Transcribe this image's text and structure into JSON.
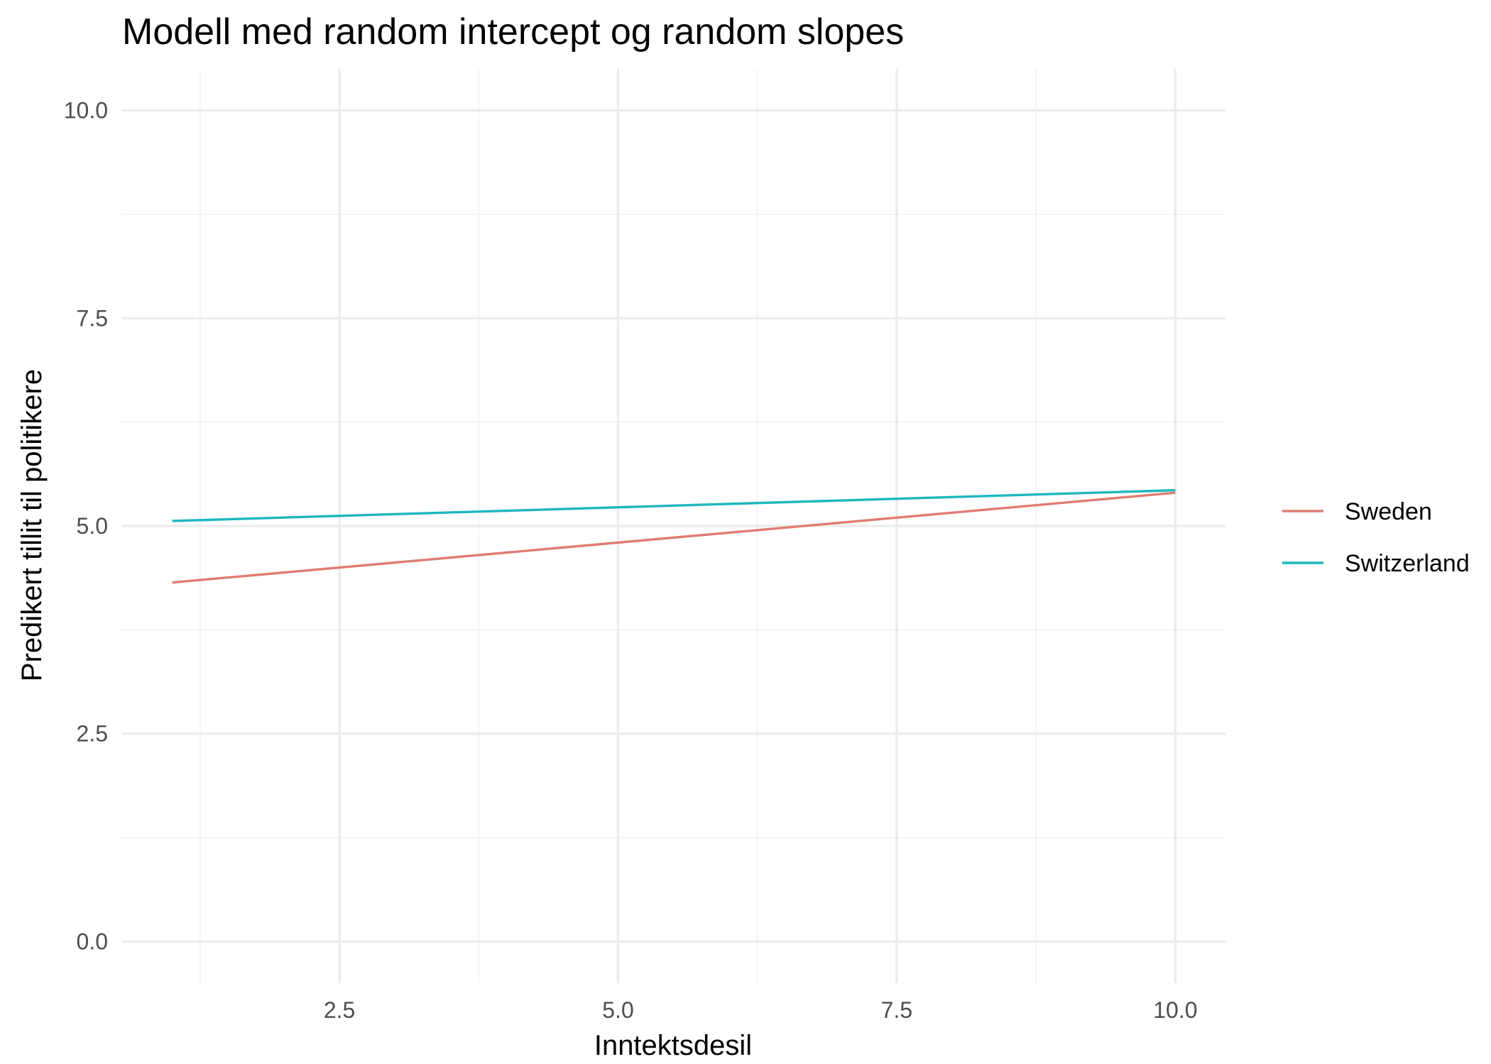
{
  "chart_data": {
    "type": "line",
    "title": "Modell med random intercept og random slopes",
    "xlabel": "Inntektsdesil",
    "ylabel": "Predikert tillit til politikere",
    "xlim": [
      0.55,
      10.45
    ],
    "ylim": [
      -0.5,
      10.5
    ],
    "x_ticks": [
      2.5,
      5.0,
      7.5,
      10.0
    ],
    "x_tick_labels": [
      "2.5",
      "5.0",
      "7.5",
      "10.0"
    ],
    "x_minor_ticks": [
      1.25,
      3.75,
      6.25,
      8.75
    ],
    "y_ticks": [
      0.0,
      2.5,
      5.0,
      7.5,
      10.0
    ],
    "y_tick_labels": [
      "0.0",
      "2.5",
      "5.0",
      "7.5",
      "10.0"
    ],
    "y_minor_ticks": [
      1.25,
      3.75,
      6.25,
      8.75
    ],
    "grid": true,
    "legend_position": "right",
    "series": [
      {
        "name": "Sweden",
        "color": "#e07b72",
        "x": [
          1,
          10
        ],
        "y": [
          4.32,
          5.4
        ]
      },
      {
        "name": "Switzerland",
        "color": "#1fb7be",
        "x": [
          1,
          10
        ],
        "y": [
          5.06,
          5.43
        ]
      }
    ]
  }
}
